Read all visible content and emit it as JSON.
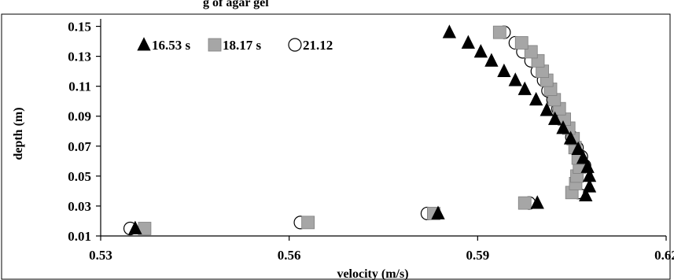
{
  "top_caption": "g of agar gel",
  "chart_data": {
    "type": "scatter",
    "title": "",
    "xlabel": "velocity (m/s)",
    "ylabel": "depth (m)",
    "xlim": [
      0.53,
      0.62
    ],
    "ylim": [
      0.01,
      0.155
    ],
    "xticks": [
      "0.53",
      "0.56",
      "0.59",
      "0.62"
    ],
    "yticks": [
      "0.01",
      "0.03",
      "0.05",
      "0.07",
      "0.09",
      "0.11",
      "0.13",
      "0.15"
    ],
    "grid": false,
    "legend_position": "top-left",
    "series": [
      {
        "name": "16.53 s",
        "marker": "triangle",
        "color": "#000000",
        "points": [
          [
            0.5355,
            0.015
          ],
          [
            0.5837,
            0.025
          ],
          [
            0.5995,
            0.032
          ],
          [
            0.6072,
            0.037
          ],
          [
            0.6078,
            0.043
          ],
          [
            0.6078,
            0.05
          ],
          [
            0.6075,
            0.056
          ],
          [
            0.6068,
            0.062
          ],
          [
            0.606,
            0.068
          ],
          [
            0.6048,
            0.075
          ],
          [
            0.6036,
            0.082
          ],
          [
            0.6023,
            0.088
          ],
          [
            0.601,
            0.094
          ],
          [
            0.5993,
            0.101
          ],
          [
            0.5975,
            0.108
          ],
          [
            0.596,
            0.114
          ],
          [
            0.5942,
            0.12
          ],
          [
            0.5922,
            0.127
          ],
          [
            0.5905,
            0.133
          ],
          [
            0.5885,
            0.139
          ],
          [
            0.5855,
            0.146
          ]
        ]
      },
      {
        "name": "18.17 s",
        "marker": "square",
        "color": "#a6a6a6",
        "points": [
          [
            0.537,
            0.015
          ],
          [
            0.563,
            0.019
          ],
          [
            0.583,
            0.025
          ],
          [
            0.5975,
            0.032
          ],
          [
            0.605,
            0.039
          ],
          [
            0.6056,
            0.045
          ],
          [
            0.6058,
            0.05
          ],
          [
            0.6062,
            0.056
          ],
          [
            0.606,
            0.062
          ],
          [
            0.6055,
            0.069
          ],
          [
            0.6052,
            0.075
          ],
          [
            0.6045,
            0.082
          ],
          [
            0.6038,
            0.088
          ],
          [
            0.603,
            0.095
          ],
          [
            0.6022,
            0.101
          ],
          [
            0.6016,
            0.108
          ],
          [
            0.601,
            0.114
          ],
          [
            0.6003,
            0.12
          ],
          [
            0.5996,
            0.127
          ],
          [
            0.5985,
            0.133
          ],
          [
            0.597,
            0.139
          ],
          [
            0.5935,
            0.146
          ]
        ]
      },
      {
        "name": "21.12",
        "marker": "circle",
        "color": "#ffffff",
        "points": [
          [
            0.5347,
            0.015
          ],
          [
            0.5618,
            0.019
          ],
          [
            0.582,
            0.025
          ],
          [
            0.5982,
            0.032
          ],
          [
            0.606,
            0.039
          ],
          [
            0.607,
            0.045
          ],
          [
            0.6072,
            0.051
          ],
          [
            0.607,
            0.057
          ],
          [
            0.6065,
            0.063
          ],
          [
            0.6058,
            0.069
          ],
          [
            0.605,
            0.076
          ],
          [
            0.6043,
            0.082
          ],
          [
            0.6035,
            0.088
          ],
          [
            0.6028,
            0.095
          ],
          [
            0.602,
            0.101
          ],
          [
            0.6012,
            0.107
          ],
          [
            0.6005,
            0.114
          ],
          [
            0.5995,
            0.12
          ],
          [
            0.5985,
            0.127
          ],
          [
            0.5972,
            0.133
          ],
          [
            0.596,
            0.139
          ],
          [
            0.5942,
            0.146
          ]
        ]
      }
    ]
  }
}
